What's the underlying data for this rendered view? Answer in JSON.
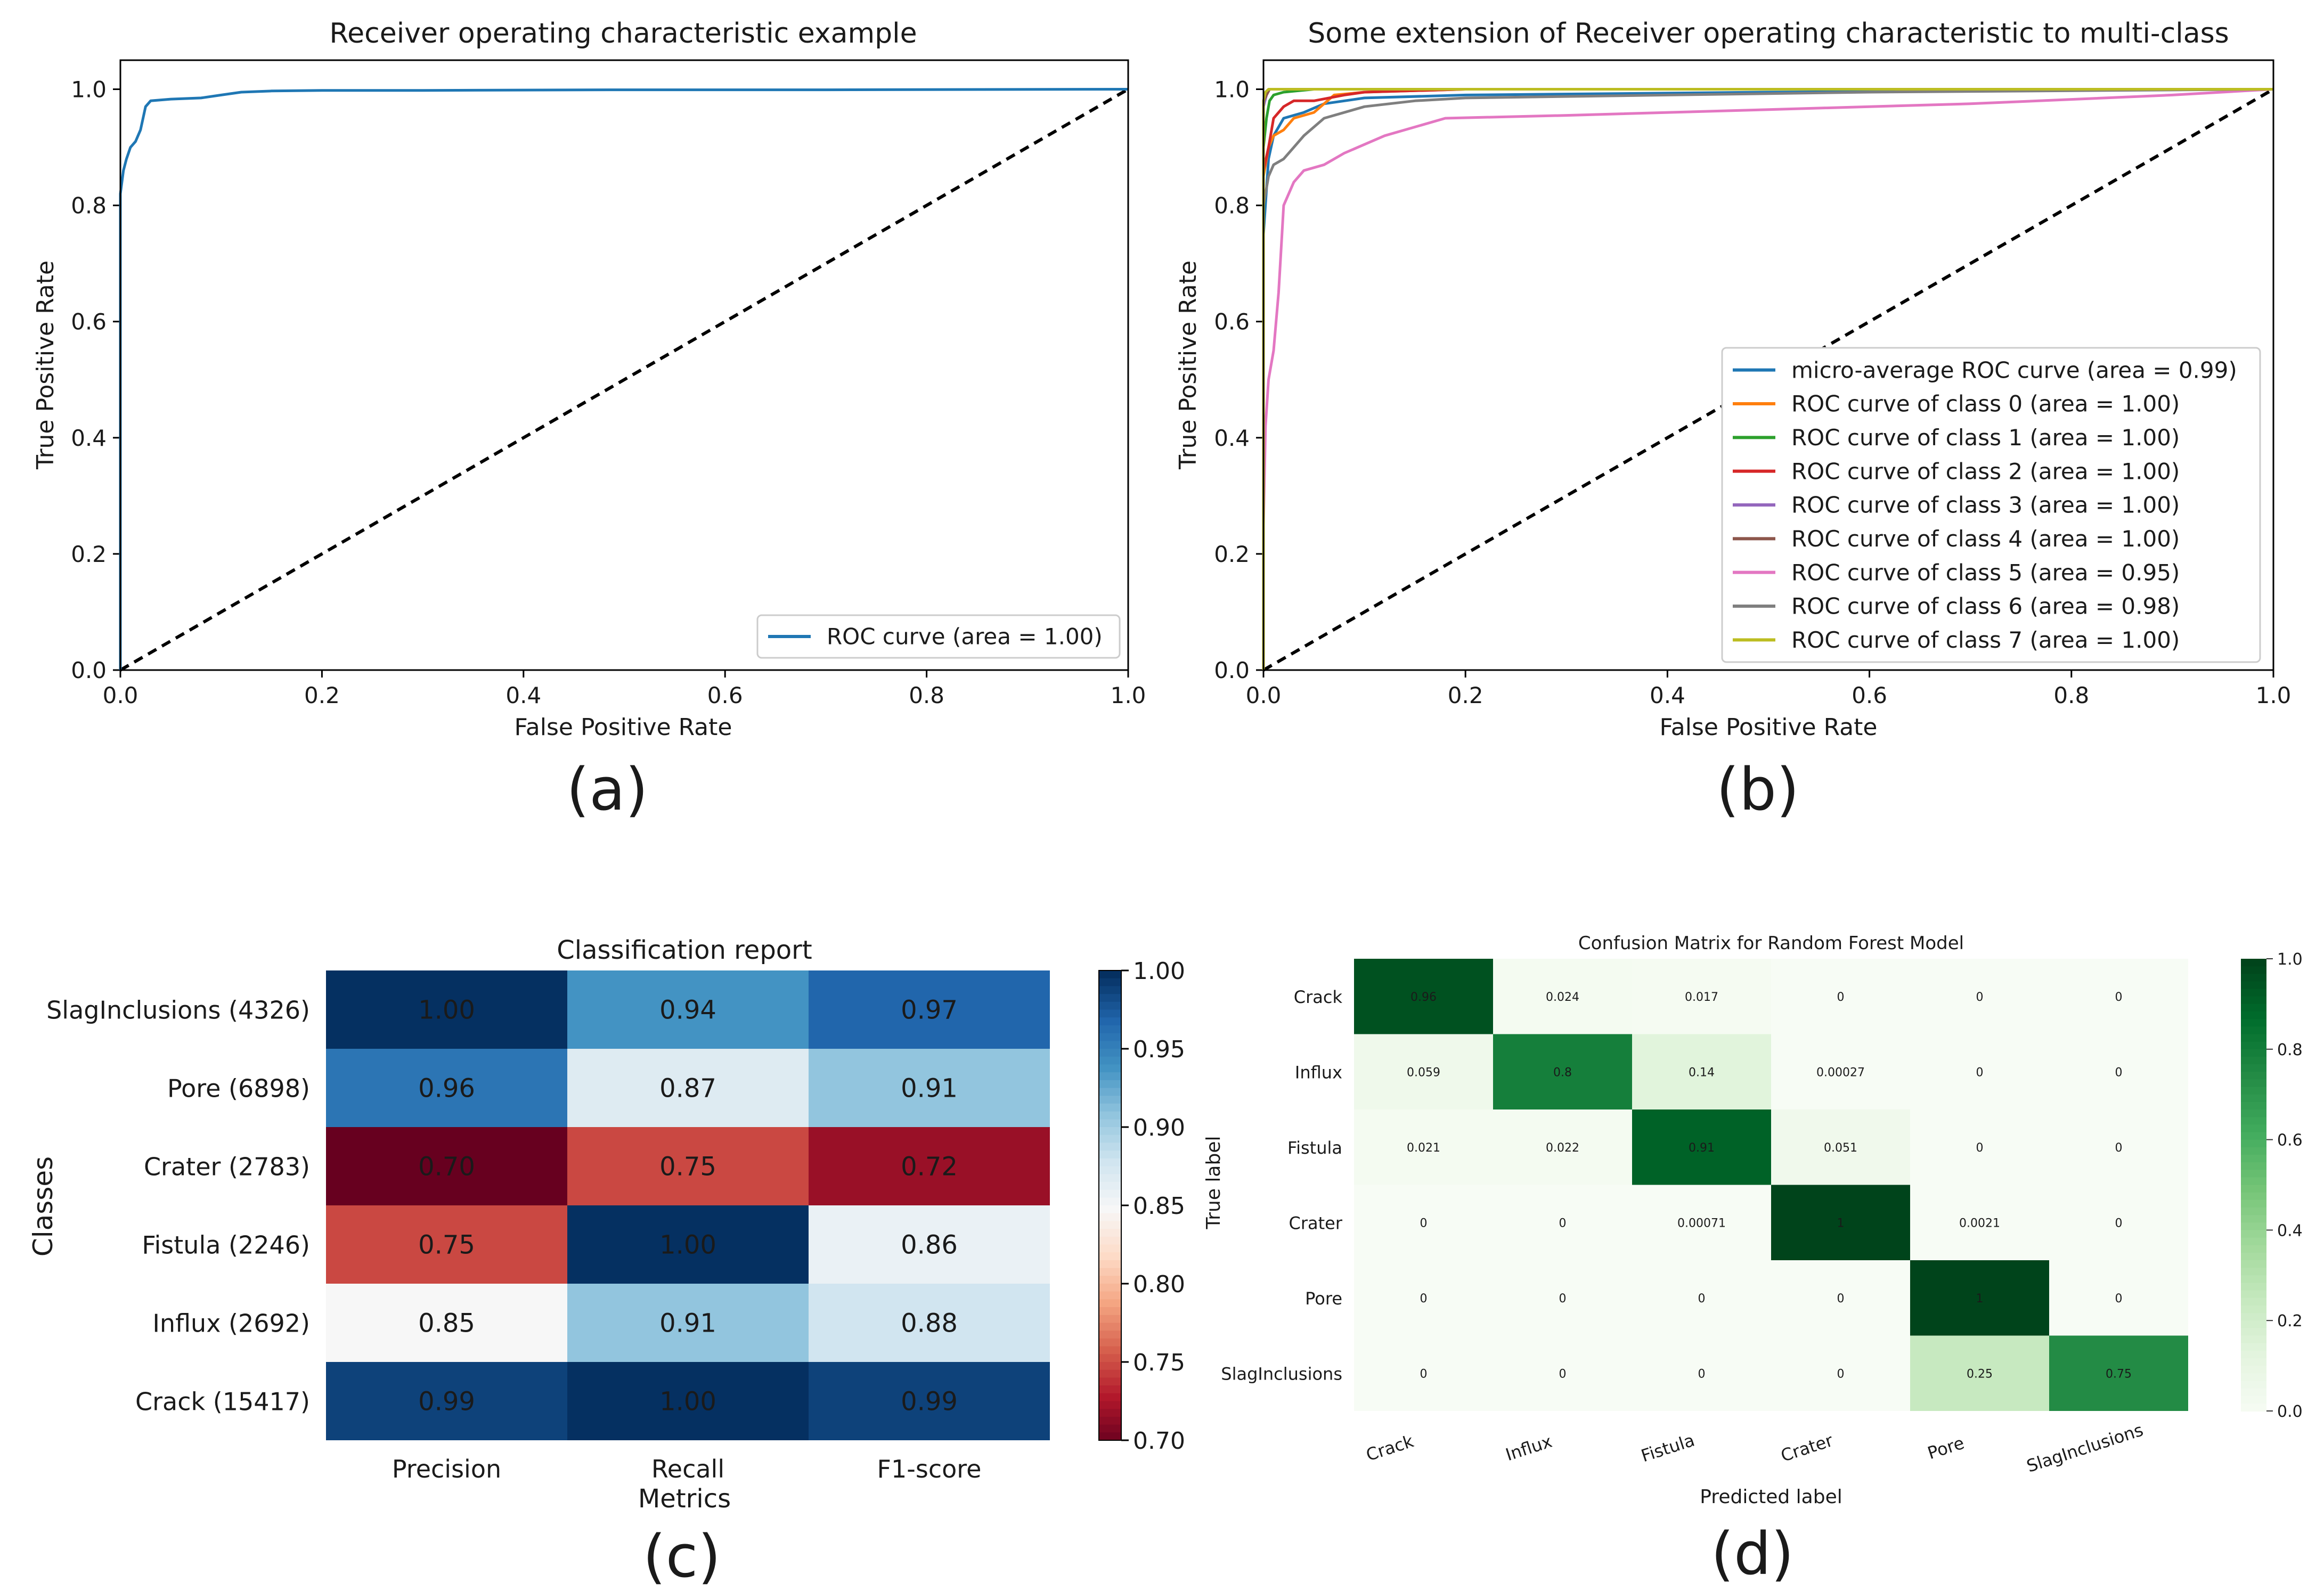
{
  "panel_labels": [
    "(a)",
    "(b)",
    "(c)",
    "(d)"
  ],
  "chart_data": [
    {
      "id": "a",
      "type": "line",
      "title": "Receiver operating characteristic example",
      "xlabel": "False Positive Rate",
      "ylabel": "True Positive Rate",
      "xlim": [
        0,
        1
      ],
      "ylim": [
        0,
        1.05
      ],
      "xticks": [
        0.0,
        0.2,
        0.4,
        0.6,
        0.8,
        1.0
      ],
      "yticks": [
        0.0,
        0.2,
        0.4,
        0.6,
        0.8,
        1.0
      ],
      "legend_position": "lower-right",
      "series": [
        {
          "name": "ROC curve (area = 1.00)",
          "color": "#1f77b4",
          "x": [
            0,
            0,
            0.003,
            0.006,
            0.01,
            0.015,
            0.02,
            0.025,
            0.03,
            0.05,
            0.08,
            0.1,
            0.12,
            0.15,
            0.2,
            0.3,
            0.5,
            0.7,
            1.0
          ],
          "y": [
            0,
            0.82,
            0.86,
            0.88,
            0.9,
            0.91,
            0.93,
            0.97,
            0.98,
            0.983,
            0.985,
            0.99,
            0.995,
            0.997,
            0.998,
            0.998,
            0.999,
            0.999,
            1.0
          ]
        }
      ],
      "diagonal": {
        "color": "#000000",
        "style": "dashed"
      }
    },
    {
      "id": "b",
      "type": "line",
      "title": "Some extension of Receiver operating characteristic to multi-class",
      "xlabel": "False Positive Rate",
      "ylabel": "True Positive Rate",
      "xlim": [
        0,
        1
      ],
      "ylim": [
        0,
        1.05
      ],
      "xticks": [
        0.0,
        0.2,
        0.4,
        0.6,
        0.8,
        1.0
      ],
      "yticks": [
        0.0,
        0.2,
        0.4,
        0.6,
        0.8,
        1.0
      ],
      "legend_position": "lower-right",
      "series": [
        {
          "name": "micro-average ROC curve (area = 0.99)",
          "color": "#1f77b4",
          "x": [
            0,
            0,
            0.005,
            0.01,
            0.02,
            0.04,
            0.06,
            0.1,
            0.2,
            0.5,
            1.0
          ],
          "y": [
            0,
            0.75,
            0.88,
            0.92,
            0.95,
            0.96,
            0.975,
            0.985,
            0.99,
            0.995,
            1.0
          ]
        },
        {
          "name": "ROC curve of class 0 (area = 1.00)",
          "color": "#ff7f0e",
          "x": [
            0,
            0,
            0.005,
            0.01,
            0.02,
            0.03,
            0.05,
            0.07,
            0.1,
            0.2,
            1.0
          ],
          "y": [
            0,
            0.85,
            0.9,
            0.92,
            0.93,
            0.95,
            0.96,
            0.99,
            0.995,
            1.0,
            1.0
          ]
        },
        {
          "name": "ROC curve of class 1 (area = 1.00)",
          "color": "#2ca02c",
          "x": [
            0,
            0,
            0.003,
            0.006,
            0.01,
            0.02,
            0.05,
            1.0
          ],
          "y": [
            0,
            0.9,
            0.95,
            0.98,
            0.99,
            0.995,
            1.0,
            1.0
          ]
        },
        {
          "name": "ROC curve of class 2 (area = 1.00)",
          "color": "#d62728",
          "x": [
            0,
            0,
            0.005,
            0.01,
            0.02,
            0.03,
            0.05,
            0.08,
            0.1,
            0.2,
            1.0
          ],
          "y": [
            0,
            0.86,
            0.9,
            0.95,
            0.97,
            0.98,
            0.98,
            0.99,
            0.995,
            1.0,
            1.0
          ]
        },
        {
          "name": "ROC curve of class 3 (area = 1.00)",
          "color": "#9467bd",
          "x": [
            0,
            0,
            0.003,
            0.006,
            0.01,
            1.0
          ],
          "y": [
            0,
            0.97,
            0.99,
            1.0,
            1.0,
            1.0
          ]
        },
        {
          "name": "ROC curve of class 4 (area = 1.00)",
          "color": "#8c564b",
          "x": [
            0,
            0,
            0.003,
            0.006,
            0.01,
            1.0
          ],
          "y": [
            0,
            0.98,
            0.99,
            1.0,
            1.0,
            1.0
          ]
        },
        {
          "name": "ROC curve of class 5 (area = 0.95)",
          "color": "#e377c2",
          "x": [
            0,
            0,
            0.002,
            0.005,
            0.01,
            0.015,
            0.02,
            0.03,
            0.04,
            0.06,
            0.08,
            0.12,
            0.18,
            0.3,
            0.5,
            0.7,
            0.9,
            1.0
          ],
          "y": [
            0,
            0.25,
            0.42,
            0.5,
            0.55,
            0.65,
            0.8,
            0.84,
            0.86,
            0.87,
            0.89,
            0.92,
            0.95,
            0.955,
            0.965,
            0.975,
            0.99,
            1.0
          ]
        },
        {
          "name": "ROC curve of class 6 (area = 0.98)",
          "color": "#7f7f7f",
          "x": [
            0,
            0,
            0.005,
            0.01,
            0.02,
            0.03,
            0.04,
            0.06,
            0.1,
            0.15,
            0.2,
            0.4,
            0.6,
            1.0
          ],
          "y": [
            0,
            0.8,
            0.85,
            0.87,
            0.88,
            0.9,
            0.92,
            0.95,
            0.97,
            0.98,
            0.985,
            0.99,
            0.995,
            1.0
          ]
        },
        {
          "name": "ROC curve of class 7 (area = 1.00)",
          "color": "#bcbd22",
          "x": [
            0,
            0,
            0.002,
            0.005,
            0.01,
            1.0
          ],
          "y": [
            0,
            0.98,
            0.995,
            1.0,
            1.0,
            1.0
          ]
        }
      ],
      "diagonal": {
        "color": "#000000",
        "style": "dashed"
      }
    },
    {
      "id": "c",
      "type": "heatmap",
      "title": "Classification report",
      "xlabel": "Metrics",
      "ylabel": "Classes",
      "columns": [
        "Precision",
        "Recall",
        "F1-score"
      ],
      "rows": [
        "SlagInclusions (4326)",
        "Pore (6898)",
        "Crater (2783)",
        "Fistula (2246)",
        "Influx (2692)",
        "Crack (15417)"
      ],
      "values": [
        [
          1.0,
          0.94,
          0.97
        ],
        [
          0.96,
          0.87,
          0.91
        ],
        [
          0.7,
          0.75,
          0.72
        ],
        [
          0.75,
          1.0,
          0.86
        ],
        [
          0.85,
          0.91,
          0.88
        ],
        [
          0.99,
          1.0,
          0.99
        ]
      ],
      "labels": [
        [
          "1.00",
          "0.94",
          "0.97"
        ],
        [
          "0.96",
          "0.87",
          "0.91"
        ],
        [
          "0.70",
          "0.75",
          "0.72"
        ],
        [
          "0.75",
          "1.00",
          "0.86"
        ],
        [
          "0.85",
          "0.91",
          "0.88"
        ],
        [
          "0.99",
          "1.00",
          "0.99"
        ]
      ],
      "colormap": "RdBu",
      "vmin": 0.7,
      "vmax": 1.0,
      "colorbar_ticks": [
        "1.00",
        "0.95",
        "0.90",
        "0.85",
        "0.80",
        "0.75",
        "0.70"
      ]
    },
    {
      "id": "d",
      "type": "heatmap",
      "title": "Confusion Matrix for Random Forest Model",
      "xlabel": "Predicted label",
      "ylabel": "True label",
      "columns": [
        "Crack",
        "Influx",
        "Fistula",
        "Crater",
        "Pore",
        "SlagInclusions"
      ],
      "rows": [
        "Crack",
        "Influx",
        "Fistula",
        "Crater",
        "Pore",
        "SlagInclusions"
      ],
      "values": [
        [
          0.96,
          0.024,
          0.017,
          0,
          0,
          0
        ],
        [
          0.059,
          0.8,
          0.14,
          0.00027,
          0,
          0
        ],
        [
          0.021,
          0.022,
          0.91,
          0.051,
          0,
          0
        ],
        [
          0,
          0,
          0.00071,
          1,
          0.0021,
          0
        ],
        [
          0,
          0,
          0,
          0,
          1,
          0
        ],
        [
          0,
          0,
          0,
          0,
          0.25,
          0.75
        ]
      ],
      "labels": [
        [
          "0.96",
          "0.024",
          "0.017",
          "0",
          "0",
          "0"
        ],
        [
          "0.059",
          "0.8",
          "0.14",
          "0.00027",
          "0",
          "0"
        ],
        [
          "0.021",
          "0.022",
          "0.91",
          "0.051",
          "0",
          "0"
        ],
        [
          "0",
          "0",
          "0.00071",
          "1",
          "0.0021",
          "0"
        ],
        [
          "0",
          "0",
          "0",
          "0",
          "1",
          "0"
        ],
        [
          "0",
          "0",
          "0",
          "0",
          "0.25",
          "0.75"
        ]
      ],
      "colormap": "Greens",
      "vmin": 0,
      "vmax": 1,
      "colorbar_ticks": [
        "1.0",
        "0.8",
        "0.6",
        "0.4",
        "0.2",
        "0.0"
      ]
    }
  ]
}
